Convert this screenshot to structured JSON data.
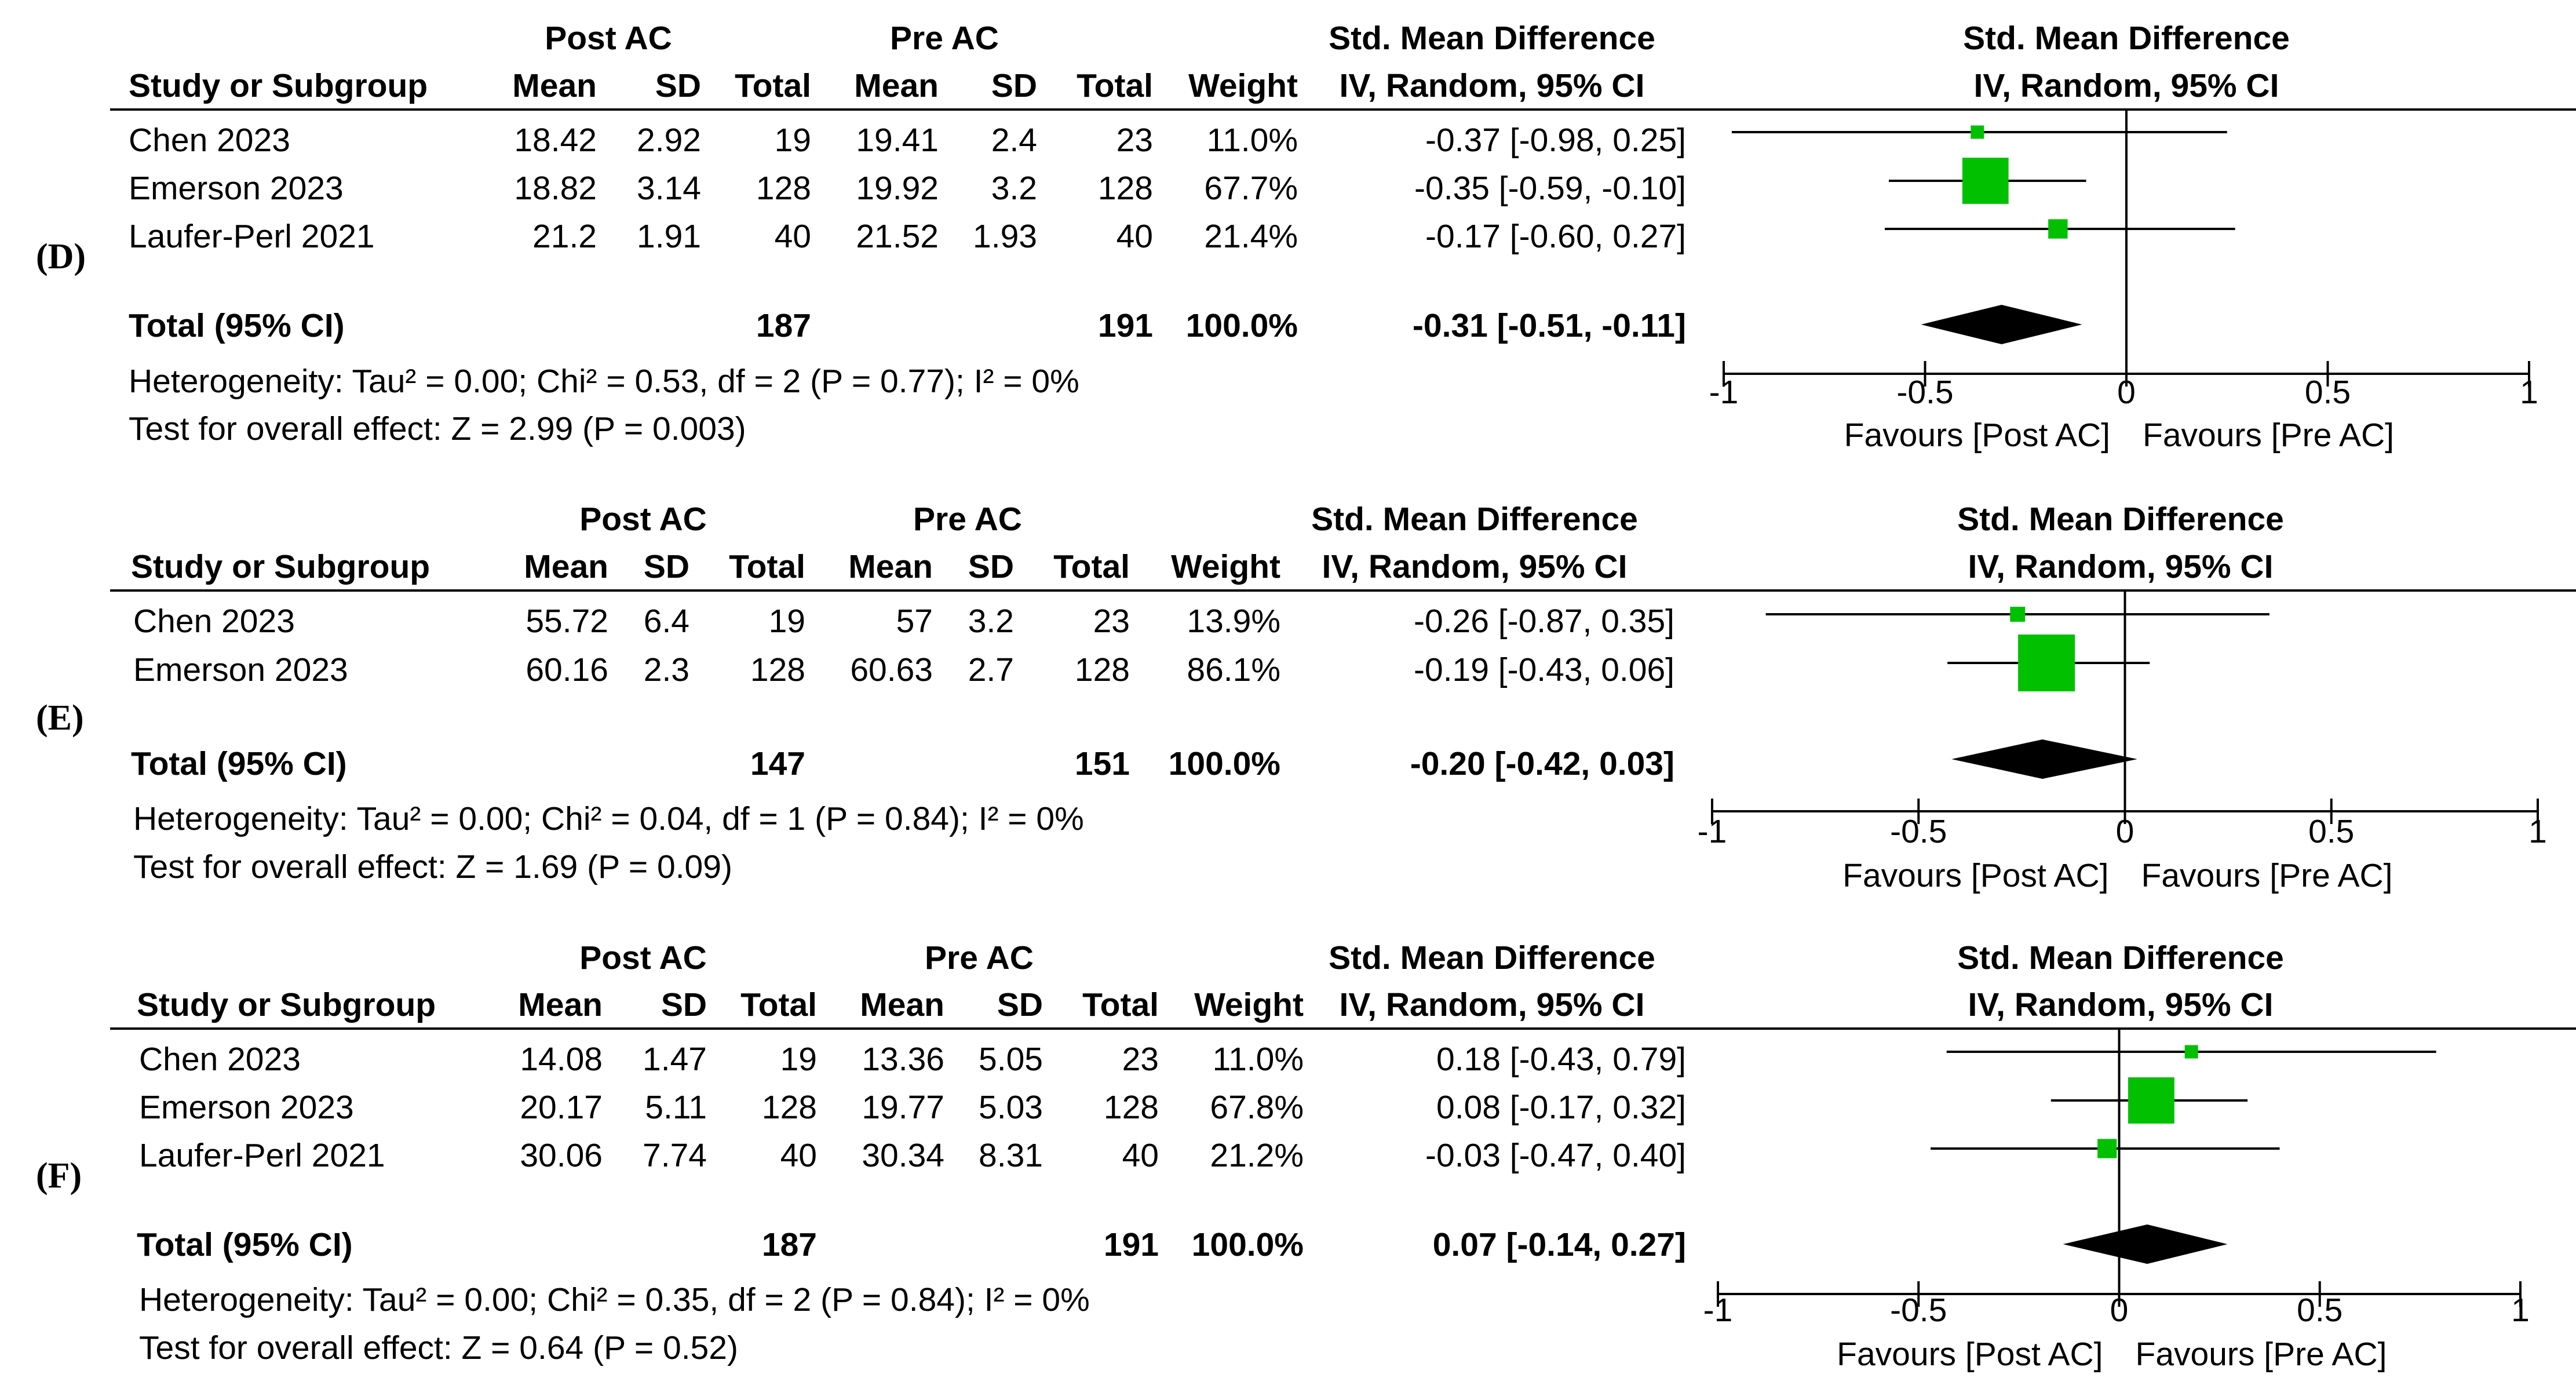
{
  "colors": {
    "box": "#00c000",
    "diamond": "#000000",
    "line": "#000000"
  },
  "header": {
    "group1": "Post AC",
    "group2": "Pre AC",
    "effect_title": "Std. Mean Difference",
    "effect_method": "IV, Random, 95% CI",
    "col_study": "Study or Subgroup",
    "col_mean": "Mean",
    "col_sd": "SD",
    "col_total": "Total",
    "col_weight": "Weight"
  },
  "axis": {
    "ticks": [
      -1,
      -0.5,
      0,
      0.5,
      1
    ],
    "tick_labels": [
      "-1",
      "-0.5",
      "0",
      "0.5",
      "1"
    ],
    "favours_left": "Favours [Post AC]",
    "favours_right": "Favours [Pre AC]"
  },
  "panels": [
    {
      "label": "(D)",
      "studies": [
        {
          "name": "Chen 2023",
          "m1": "18.42",
          "sd1": "2.92",
          "n1": "19",
          "m2": "19.41",
          "sd2": "2.4",
          "n2": "23",
          "weight": "11.0%",
          "ci_text": "-0.37 [-0.98, 0.25]",
          "est": -0.37,
          "lo": -0.98,
          "hi": 0.25,
          "w": 11.0
        },
        {
          "name": "Emerson 2023",
          "m1": "18.82",
          "sd1": "3.14",
          "n1": "128",
          "m2": "19.92",
          "sd2": "3.2",
          "n2": "128",
          "weight": "67.7%",
          "ci_text": "-0.35 [-0.59, -0.10]",
          "est": -0.35,
          "lo": -0.59,
          "hi": -0.1,
          "w": 67.7
        },
        {
          "name": "Laufer-Perl 2021",
          "m1": "21.2",
          "sd1": "1.91",
          "n1": "40",
          "m2": "21.52",
          "sd2": "1.93",
          "n2": "40",
          "weight": "21.4%",
          "ci_text": "-0.17 [-0.60, 0.27]",
          "est": -0.17,
          "lo": -0.6,
          "hi": 0.27,
          "w": 21.4
        }
      ],
      "total": {
        "label": "Total (95% CI)",
        "n1": "187",
        "n2": "191",
        "weight": "100.0%",
        "ci_text": "-0.31 [-0.51, -0.11]",
        "est": -0.31,
        "lo": -0.51,
        "hi": -0.11
      },
      "heterogeneity": "Heterogeneity: Tau² = 0.00; Chi² = 0.53, df = 2 (P = 0.77); I² = 0%",
      "overall": "Test for overall effect: Z = 2.99 (P = 0.003)"
    },
    {
      "label": "(E)",
      "studies": [
        {
          "name": "Chen 2023",
          "m1": "55.72",
          "sd1": "6.4",
          "n1": "19",
          "m2": "57",
          "sd2": "3.2",
          "n2": "23",
          "weight": "13.9%",
          "ci_text": "-0.26 [-0.87, 0.35]",
          "est": -0.26,
          "lo": -0.87,
          "hi": 0.35,
          "w": 13.9
        },
        {
          "name": "Emerson 2023",
          "m1": "60.16",
          "sd1": "2.3",
          "n1": "128",
          "m2": "60.63",
          "sd2": "2.7",
          "n2": "128",
          "weight": "86.1%",
          "ci_text": "-0.19 [-0.43, 0.06]",
          "est": -0.19,
          "lo": -0.43,
          "hi": 0.06,
          "w": 86.1
        }
      ],
      "total": {
        "label": "Total (95% CI)",
        "n1": "147",
        "n2": "151",
        "weight": "100.0%",
        "ci_text": "-0.20 [-0.42, 0.03]",
        "est": -0.2,
        "lo": -0.42,
        "hi": 0.03
      },
      "heterogeneity": "Heterogeneity: Tau² = 0.00; Chi² = 0.04, df = 1 (P = 0.84); I² = 0%",
      "overall": "Test for overall effect: Z = 1.69 (P = 0.09)"
    },
    {
      "label": "(F)",
      "studies": [
        {
          "name": "Chen 2023",
          "m1": "14.08",
          "sd1": "1.47",
          "n1": "19",
          "m2": "13.36",
          "sd2": "5.05",
          "n2": "23",
          "weight": "11.0%",
          "ci_text": "0.18 [-0.43, 0.79]",
          "est": 0.18,
          "lo": -0.43,
          "hi": 0.79,
          "w": 11.0
        },
        {
          "name": "Emerson 2023",
          "m1": "20.17",
          "sd1": "5.11",
          "n1": "128",
          "m2": "19.77",
          "sd2": "5.03",
          "n2": "128",
          "weight": "67.8%",
          "ci_text": "0.08 [-0.17, 0.32]",
          "est": 0.08,
          "lo": -0.17,
          "hi": 0.32,
          "w": 67.8
        },
        {
          "name": "Laufer-Perl 2021",
          "m1": "30.06",
          "sd1": "7.74",
          "n1": "40",
          "m2": "30.34",
          "sd2": "8.31",
          "n2": "40",
          "weight": "21.2%",
          "ci_text": "-0.03 [-0.47, 0.40]",
          "est": -0.03,
          "lo": -0.47,
          "hi": 0.4,
          "w": 21.2
        }
      ],
      "total": {
        "label": "Total (95% CI)",
        "n1": "187",
        "n2": "191",
        "weight": "100.0%",
        "ci_text": "0.07 [-0.14, 0.27]",
        "est": 0.07,
        "lo": -0.14,
        "hi": 0.27
      },
      "heterogeneity": "Heterogeneity: Tau² = 0.00; Chi² = 0.35, df = 2 (P = 0.84); I² = 0%",
      "overall": "Test for overall effect: Z = 0.64 (P = 0.52)"
    }
  ],
  "chart_data": {
    "type": "forest",
    "title": "Std. Mean Difference, IV, Random, 95% CI",
    "xlabel": "Favours [Post AC] / Favours [Pre AC]",
    "xlim": [
      -1,
      1
    ],
    "series": [
      {
        "name": "(D)",
        "studies": [
          "Chen 2023",
          "Emerson 2023",
          "Laufer-Perl 2021"
        ],
        "estimates": [
          -0.37,
          -0.35,
          -0.17
        ],
        "ci_low": [
          -0.98,
          -0.59,
          -0.6
        ],
        "ci_high": [
          0.25,
          -0.1,
          0.27
        ],
        "weights": [
          11.0,
          67.7,
          21.4
        ],
        "pooled": {
          "estimate": -0.31,
          "ci": [
            -0.51,
            -0.11
          ]
        }
      },
      {
        "name": "(E)",
        "studies": [
          "Chen 2023",
          "Emerson 2023"
        ],
        "estimates": [
          -0.26,
          -0.19
        ],
        "ci_low": [
          -0.87,
          -0.43
        ],
        "ci_high": [
          0.35,
          0.06
        ],
        "weights": [
          13.9,
          86.1
        ],
        "pooled": {
          "estimate": -0.2,
          "ci": [
            -0.42,
            0.03
          ]
        }
      },
      {
        "name": "(F)",
        "studies": [
          "Chen 2023",
          "Emerson 2023",
          "Laufer-Perl 2021"
        ],
        "estimates": [
          0.18,
          0.08,
          -0.03
        ],
        "ci_low": [
          -0.43,
          -0.17,
          -0.47
        ],
        "ci_high": [
          0.79,
          0.32,
          0.4
        ],
        "weights": [
          11.0,
          67.8,
          21.2
        ],
        "pooled": {
          "estimate": 0.07,
          "ci": [
            -0.14,
            0.27
          ]
        }
      }
    ]
  }
}
